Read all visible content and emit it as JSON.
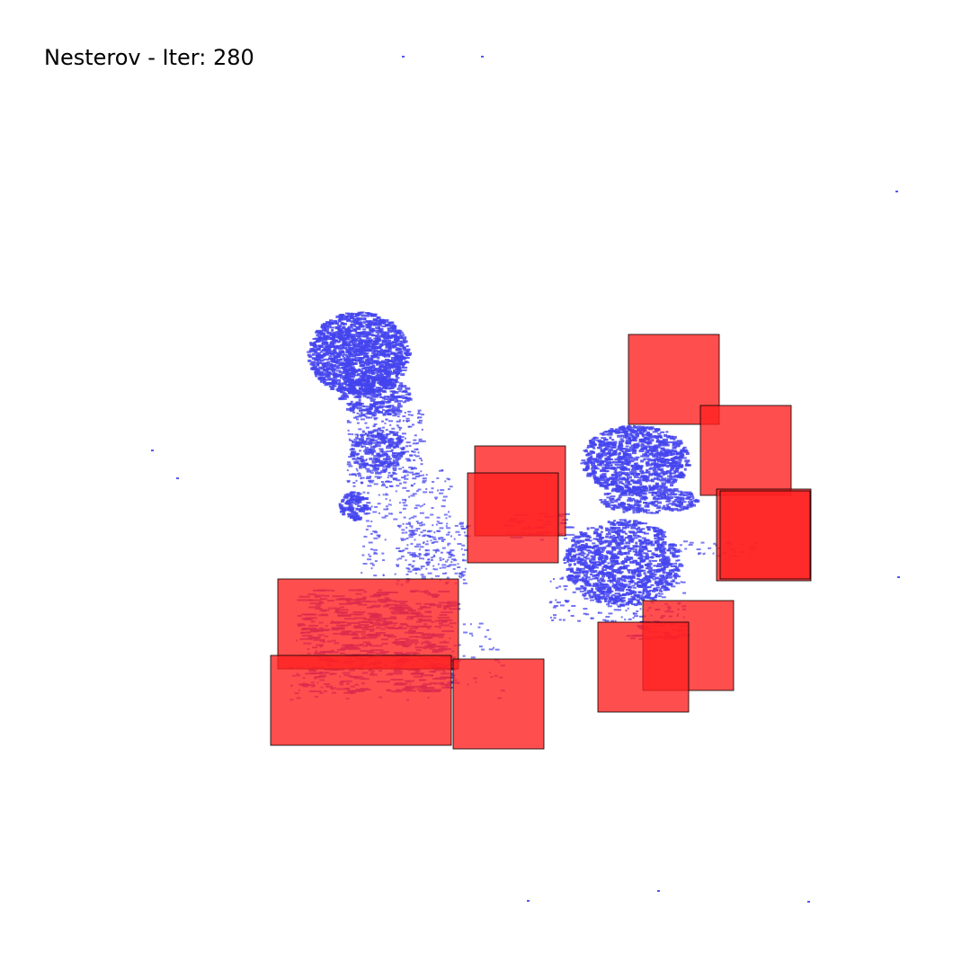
{
  "title": "Nesterov - Iter: 280",
  "colors": {
    "cell_fill": "#4444ee",
    "macro_fill": "#ff2222",
    "macro_stroke": "#000000",
    "background": "#ffffff"
  }
}
